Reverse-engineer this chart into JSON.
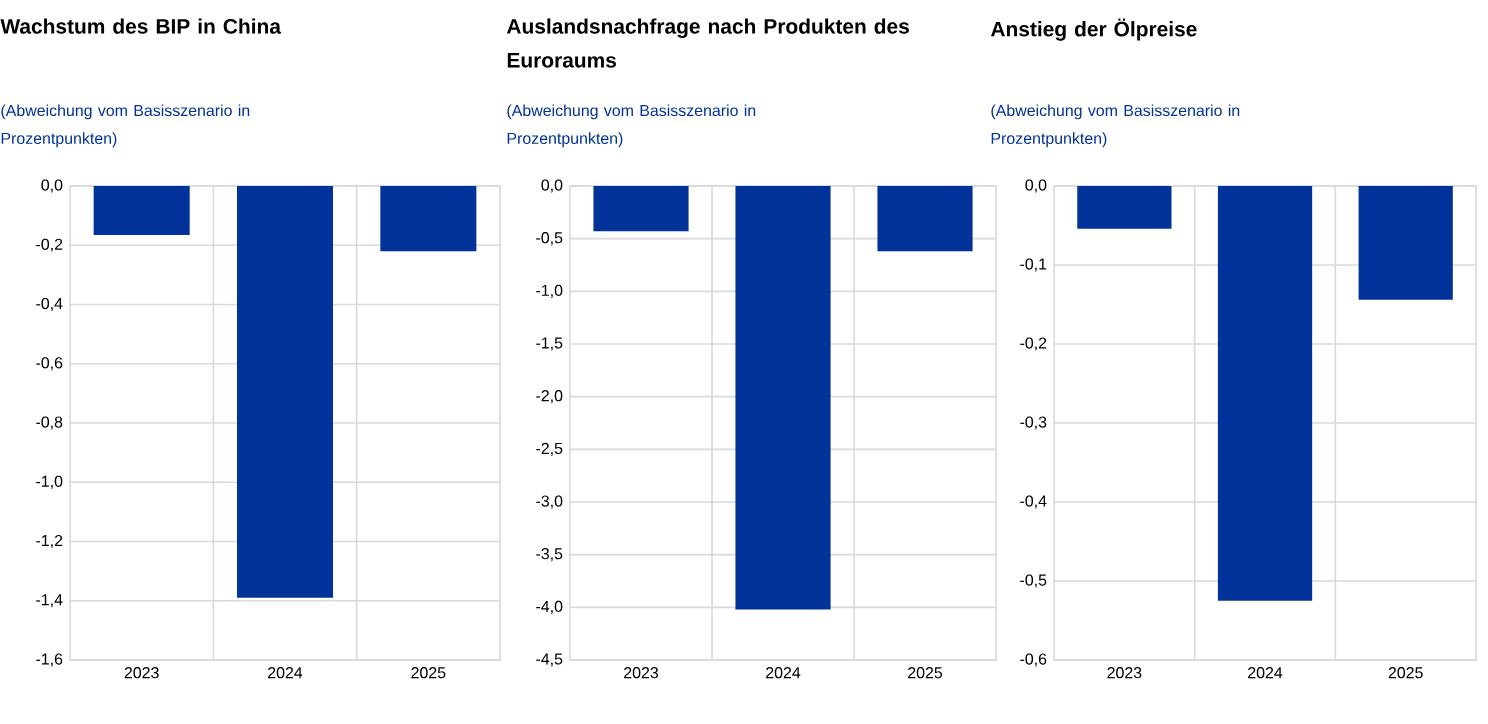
{
  "chart_data": [
    {
      "type": "bar",
      "title": "Wachstum des BIP in China",
      "subtitle": "(Abweichung vom Basisszenario in Prozentpunkten)",
      "categories": [
        "2023",
        "2024",
        "2025"
      ],
      "values": [
        -0.165,
        -1.39,
        -0.22
      ],
      "color": "#003299",
      "ylim": [
        -1.6,
        0
      ],
      "yticks": [
        {
          "value": -1.6,
          "label": "-1,6"
        },
        {
          "value": -1.4,
          "label": "-1,4"
        },
        {
          "value": -1.2,
          "label": "-1,2"
        },
        {
          "value": -1.0,
          "label": "-1,0"
        },
        {
          "value": -0.8,
          "label": "-0,8"
        },
        {
          "value": -0.6,
          "label": "-0,6"
        },
        {
          "value": -0.4,
          "label": "-0,4"
        },
        {
          "value": -0.2,
          "label": "-0,2"
        },
        {
          "value": 0,
          "label": "0,0"
        }
      ],
      "grid": true
    },
    {
      "type": "bar",
      "title": "Auslandsnachfrage nach Produkten des Euroraums",
      "subtitle": "(Abweichung vom Basisszenario in Prozentpunkten)",
      "categories": [
        "2023",
        "2024",
        "2025"
      ],
      "values": [
        -0.43,
        -4.02,
        -0.62
      ],
      "color": "#003299",
      "ylim": [
        -4.5,
        0
      ],
      "yticks": [
        {
          "value": -4.5,
          "label": "-4,5"
        },
        {
          "value": -4.0,
          "label": "-4,0"
        },
        {
          "value": -3.5,
          "label": "-3,5"
        },
        {
          "value": -3.0,
          "label": "-3,0"
        },
        {
          "value": -2.5,
          "label": "-2,5"
        },
        {
          "value": -2.0,
          "label": "-2,0"
        },
        {
          "value": -1.5,
          "label": "-1,5"
        },
        {
          "value": -1.0,
          "label": "-1,0"
        },
        {
          "value": -0.5,
          "label": "-0,5"
        },
        {
          "value": 0,
          "label": "0,0"
        }
      ],
      "grid": true
    },
    {
      "type": "bar",
      "title": "Anstieg der Ölpreise",
      "subtitle": "(Abweichung vom Basisszenario in Prozentpunkten)",
      "categories": [
        "2023",
        "2024",
        "2025"
      ],
      "values": [
        -0.054,
        -0.525,
        -0.144
      ],
      "color": "#003299",
      "ylim": [
        -0.6,
        0
      ],
      "yticks": [
        {
          "value": -0.6,
          "label": "-0,6"
        },
        {
          "value": -0.5,
          "label": "-0,5"
        },
        {
          "value": -0.4,
          "label": "-0,4"
        },
        {
          "value": -0.3,
          "label": "-0,3"
        },
        {
          "value": -0.2,
          "label": "-0,2"
        },
        {
          "value": -0.1,
          "label": "-0,1"
        },
        {
          "value": 0,
          "label": "0,0"
        }
      ],
      "grid": true
    }
  ]
}
